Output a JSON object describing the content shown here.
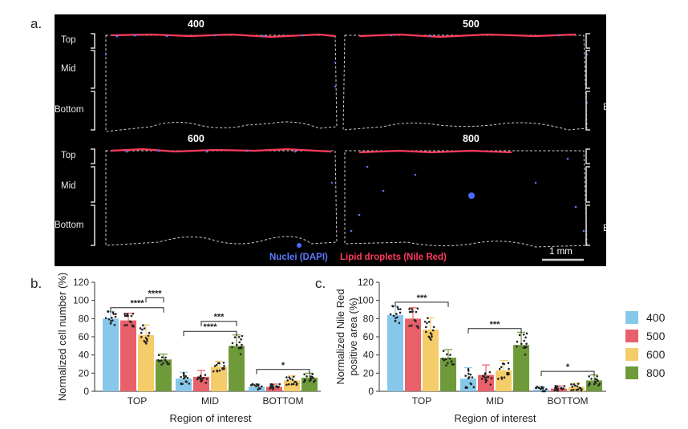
{
  "panel_labels": {
    "a": "a.",
    "b": "b.",
    "c": "c."
  },
  "micrograph": {
    "tiles": [
      "400",
      "500",
      "600",
      "800"
    ],
    "zones": [
      "Top",
      "Mid",
      "Bottom"
    ],
    "caption_nuclei": "Nuclei (DAPI)",
    "caption_lipid": "Lipid droplets (Nile Red)",
    "scale_bar": "1 mm",
    "colors": {
      "nuclei": "#5b7bff",
      "lipid": "#ff3b5c"
    }
  },
  "legend": [
    {
      "name": "400",
      "color": "#87c8ea"
    },
    {
      "name": "500",
      "color": "#e8606a"
    },
    {
      "name": "600",
      "color": "#f5cc6a"
    },
    {
      "name": "800",
      "color": "#6f9a3a"
    }
  ],
  "chart_data": [
    {
      "type": "bar",
      "panel": "b",
      "ylabel": "Normalized cell number (%)",
      "xlabel": "Region of interest",
      "categories": [
        "TOP",
        "MID",
        "BOTTOM"
      ],
      "ylim": [
        0,
        120
      ],
      "yticks": [
        0,
        20,
        40,
        60,
        80,
        100,
        120
      ],
      "series": [
        {
          "name": "400",
          "values": [
            80,
            14,
            5
          ],
          "errors": [
            8,
            7,
            3
          ]
        },
        {
          "name": "500",
          "values": [
            78,
            16,
            5
          ],
          "errors": [
            8,
            7,
            3
          ]
        },
        {
          "name": "600",
          "values": [
            62,
            27,
            12
          ],
          "errors": [
            11,
            6,
            5
          ]
        },
        {
          "name": "800",
          "values": [
            35,
            50,
            15
          ],
          "errors": [
            6,
            12,
            5
          ]
        }
      ],
      "significance": [
        {
          "label": "****",
          "from": [
            0,
            0
          ],
          "to": [
            0,
            3
          ]
        },
        {
          "label": "****",
          "from": [
            0,
            2
          ],
          "to": [
            0,
            3
          ]
        },
        {
          "label": "****",
          "from": [
            1,
            0
          ],
          "to": [
            1,
            3
          ]
        },
        {
          "label": "***",
          "from": [
            1,
            1
          ],
          "to": [
            1,
            3
          ]
        },
        {
          "label": "*",
          "from": [
            2,
            0
          ],
          "to": [
            2,
            3
          ]
        }
      ]
    },
    {
      "type": "bar",
      "panel": "c",
      "ylabel": "Normalized Nile Red positive area (%)",
      "ylabel_lines": [
        "Normalized Nile Red",
        "positive area (%)"
      ],
      "xlabel": "Region of interest",
      "categories": [
        "TOP",
        "MID",
        "BOTTOM"
      ],
      "ylim": [
        0,
        120
      ],
      "yticks": [
        0,
        20,
        40,
        60,
        80,
        100,
        120
      ],
      "series": [
        {
          "name": "400",
          "values": [
            84,
            14,
            2
          ],
          "errors": [
            10,
            12,
            3
          ]
        },
        {
          "name": "500",
          "values": [
            80,
            18,
            3
          ],
          "errors": [
            12,
            11,
            3
          ]
        },
        {
          "name": "600",
          "values": [
            68,
            23,
            5
          ],
          "errors": [
            13,
            11,
            4
          ]
        },
        {
          "name": "800",
          "values": [
            37,
            51,
            12
          ],
          "errors": [
            9,
            14,
            6
          ]
        }
      ],
      "significance": [
        {
          "label": "***",
          "from": [
            0,
            0
          ],
          "to": [
            0,
            3
          ]
        },
        {
          "label": "***",
          "from": [
            1,
            0
          ],
          "to": [
            1,
            3
          ]
        },
        {
          "label": "*",
          "from": [
            2,
            0
          ],
          "to": [
            2,
            3
          ]
        }
      ]
    }
  ]
}
